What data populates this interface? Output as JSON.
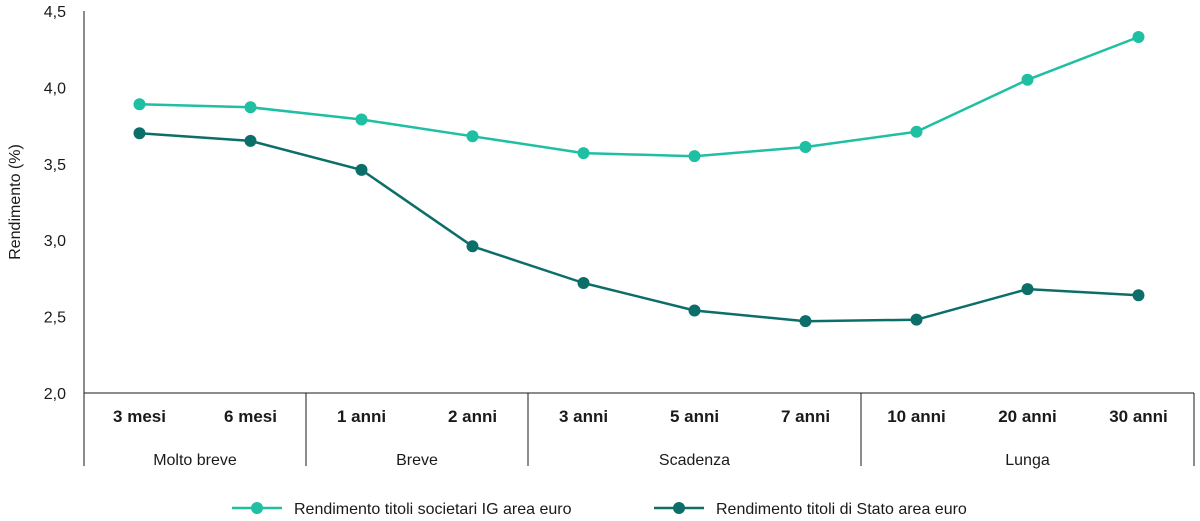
{
  "chart_data": {
    "type": "line",
    "ylabel": "Rendimento (%)",
    "ylim": [
      2.0,
      4.5
    ],
    "yticks": [
      "2,0",
      "2,5",
      "3,0",
      "3,5",
      "4,0",
      "4,5"
    ],
    "categories": [
      "3 mesi",
      "6 mesi",
      "1 anni",
      "2 anni",
      "3 anni",
      "5 anni",
      "7 anni",
      "10 anni",
      "20 anni",
      "30 anni"
    ],
    "groups": [
      {
        "label": "Molto breve",
        "span": 2
      },
      {
        "label": "Breve",
        "span": 2
      },
      {
        "label": "Scadenza",
        "span": 3
      },
      {
        "label": "Lunga",
        "span": 3
      }
    ],
    "series": [
      {
        "name": "Rendimento titoli societari IG area euro",
        "color": "#1fbfa3",
        "values": [
          3.89,
          3.87,
          3.79,
          3.68,
          3.57,
          3.55,
          3.61,
          3.71,
          4.05,
          4.33
        ]
      },
      {
        "name": "Rendimento titoli di Stato area euro",
        "color": "#0c6e69",
        "values": [
          3.7,
          3.65,
          3.46,
          2.96,
          2.72,
          2.54,
          2.47,
          2.48,
          2.68,
          2.64
        ]
      }
    ],
    "legend_position": "bottom"
  }
}
